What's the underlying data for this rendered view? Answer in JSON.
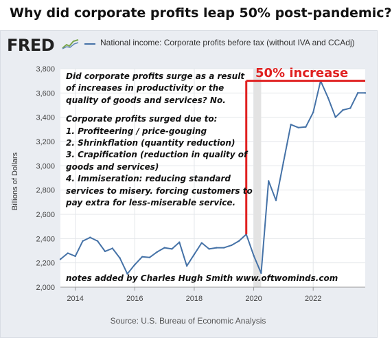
{
  "headline": "Why did corporate profits leap 50% post-pandemic?",
  "logo": {
    "text": "FRED"
  },
  "legend": {
    "label": "National income: Corporate profits before tax (without IVA and CCAdj)",
    "color": "#4572a7"
  },
  "source": "Source: U.S. Bureau of Economic Analysis",
  "annotations": {
    "question_lines": [
      "Did corporate profits surge as a result",
      "of increases in productivity or the",
      "quality of goods and services? No."
    ],
    "reason_lines": [
      "Corporate profits surged due to:",
      "1. Profiteering / price-gouging",
      "2. Shrinkflation (quantity reduction)",
      "3. Crapification (reduction in quality of",
      "goods and services)",
      "4. Immiseration: reducing standard",
      "services to misery. forcing customers to",
      "pay extra for less-miserable service."
    ],
    "credit": "notes added by Charles Hugh Smith  www.oftwominds.com",
    "increase": "50% increase",
    "accent_color": "#e02020"
  },
  "chart_data": {
    "type": "line",
    "title": "National income: Corporate profits before tax (without IVA and CCAdj)",
    "ylabel": "Billions of Dollars",
    "xlabel": "",
    "ylim": [
      2000,
      3800
    ],
    "xlim": [
      2013.5,
      2023.75
    ],
    "y_ticks": [
      2000,
      2200,
      2400,
      2600,
      2800,
      3000,
      3200,
      3400,
      3600,
      3800
    ],
    "y_tick_labels": [
      "2,000",
      "2,200",
      "2,400",
      "2,600",
      "2,800",
      "3,000",
      "3,200",
      "3,400",
      "3,600",
      "3,800"
    ],
    "x_ticks": [
      2014,
      2016,
      2018,
      2020,
      2022
    ],
    "x_tick_labels": [
      "2014",
      "2016",
      "2018",
      "2020",
      "2022"
    ],
    "grid": true,
    "recession_shading": [
      2020.0,
      2020.25
    ],
    "series": [
      {
        "color": "#4572a7",
        "x": [
          2013.5,
          2013.75,
          2014.0,
          2014.25,
          2014.5,
          2014.75,
          2015.0,
          2015.25,
          2015.5,
          2015.75,
          2016.0,
          2016.25,
          2016.5,
          2016.75,
          2017.0,
          2017.25,
          2017.5,
          2017.75,
          2018.0,
          2018.25,
          2018.5,
          2018.75,
          2019.0,
          2019.25,
          2019.5,
          2019.75,
          2020.0,
          2020.25,
          2020.5,
          2020.75,
          2021.0,
          2021.25,
          2021.5,
          2021.75,
          2022.0,
          2022.25,
          2022.5,
          2022.75,
          2023.0,
          2023.25,
          2023.5,
          2023.75
        ],
        "values": [
          2230,
          2280,
          2255,
          2380,
          2410,
          2380,
          2295,
          2320,
          2240,
          2110,
          2185,
          2250,
          2245,
          2290,
          2325,
          2315,
          2370,
          2175,
          2270,
          2365,
          2315,
          2325,
          2325,
          2345,
          2380,
          2435,
          2260,
          2115,
          2875,
          2715,
          3030,
          3340,
          3315,
          3320,
          3440,
          3700,
          3560,
          3400,
          3460,
          3475,
          3600,
          3600
        ]
      }
    ]
  }
}
